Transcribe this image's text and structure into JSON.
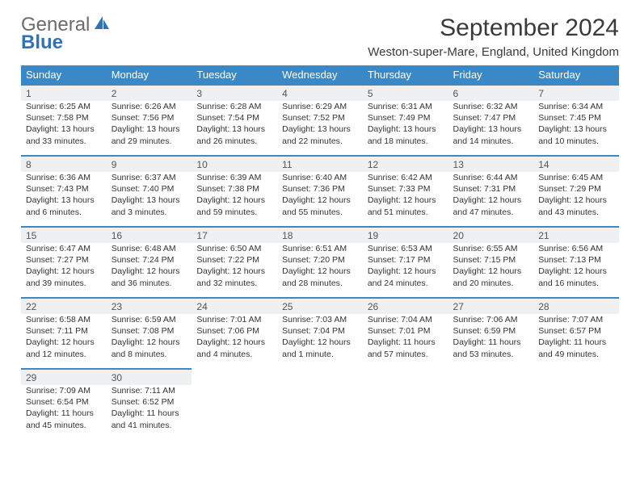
{
  "logo": {
    "top": "General",
    "bottom": "Blue",
    "top_color": "#6b6b6b",
    "bottom_color": "#2f72b6",
    "icon_color": "#2f72b6"
  },
  "title": "September 2024",
  "location": "Weston-super-Mare, England, United Kingdom",
  "header_bg": "#3b88c6",
  "header_fg": "#ffffff",
  "row_border_color": "#3b88c6",
  "daynum_bg": "#eef0f1",
  "weekdays": [
    "Sunday",
    "Monday",
    "Tuesday",
    "Wednesday",
    "Thursday",
    "Friday",
    "Saturday"
  ],
  "weeks": [
    [
      {
        "n": "1",
        "sr": "6:25 AM",
        "ss": "7:58 PM",
        "dl": "13 hours and 33 minutes."
      },
      {
        "n": "2",
        "sr": "6:26 AM",
        "ss": "7:56 PM",
        "dl": "13 hours and 29 minutes."
      },
      {
        "n": "3",
        "sr": "6:28 AM",
        "ss": "7:54 PM",
        "dl": "13 hours and 26 minutes."
      },
      {
        "n": "4",
        "sr": "6:29 AM",
        "ss": "7:52 PM",
        "dl": "13 hours and 22 minutes."
      },
      {
        "n": "5",
        "sr": "6:31 AM",
        "ss": "7:49 PM",
        "dl": "13 hours and 18 minutes."
      },
      {
        "n": "6",
        "sr": "6:32 AM",
        "ss": "7:47 PM",
        "dl": "13 hours and 14 minutes."
      },
      {
        "n": "7",
        "sr": "6:34 AM",
        "ss": "7:45 PM",
        "dl": "13 hours and 10 minutes."
      }
    ],
    [
      {
        "n": "8",
        "sr": "6:36 AM",
        "ss": "7:43 PM",
        "dl": "13 hours and 6 minutes."
      },
      {
        "n": "9",
        "sr": "6:37 AM",
        "ss": "7:40 PM",
        "dl": "13 hours and 3 minutes."
      },
      {
        "n": "10",
        "sr": "6:39 AM",
        "ss": "7:38 PM",
        "dl": "12 hours and 59 minutes."
      },
      {
        "n": "11",
        "sr": "6:40 AM",
        "ss": "7:36 PM",
        "dl": "12 hours and 55 minutes."
      },
      {
        "n": "12",
        "sr": "6:42 AM",
        "ss": "7:33 PM",
        "dl": "12 hours and 51 minutes."
      },
      {
        "n": "13",
        "sr": "6:44 AM",
        "ss": "7:31 PM",
        "dl": "12 hours and 47 minutes."
      },
      {
        "n": "14",
        "sr": "6:45 AM",
        "ss": "7:29 PM",
        "dl": "12 hours and 43 minutes."
      }
    ],
    [
      {
        "n": "15",
        "sr": "6:47 AM",
        "ss": "7:27 PM",
        "dl": "12 hours and 39 minutes."
      },
      {
        "n": "16",
        "sr": "6:48 AM",
        "ss": "7:24 PM",
        "dl": "12 hours and 36 minutes."
      },
      {
        "n": "17",
        "sr": "6:50 AM",
        "ss": "7:22 PM",
        "dl": "12 hours and 32 minutes."
      },
      {
        "n": "18",
        "sr": "6:51 AM",
        "ss": "7:20 PM",
        "dl": "12 hours and 28 minutes."
      },
      {
        "n": "19",
        "sr": "6:53 AM",
        "ss": "7:17 PM",
        "dl": "12 hours and 24 minutes."
      },
      {
        "n": "20",
        "sr": "6:55 AM",
        "ss": "7:15 PM",
        "dl": "12 hours and 20 minutes."
      },
      {
        "n": "21",
        "sr": "6:56 AM",
        "ss": "7:13 PM",
        "dl": "12 hours and 16 minutes."
      }
    ],
    [
      {
        "n": "22",
        "sr": "6:58 AM",
        "ss": "7:11 PM",
        "dl": "12 hours and 12 minutes."
      },
      {
        "n": "23",
        "sr": "6:59 AM",
        "ss": "7:08 PM",
        "dl": "12 hours and 8 minutes."
      },
      {
        "n": "24",
        "sr": "7:01 AM",
        "ss": "7:06 PM",
        "dl": "12 hours and 4 minutes."
      },
      {
        "n": "25",
        "sr": "7:03 AM",
        "ss": "7:04 PM",
        "dl": "12 hours and 1 minute."
      },
      {
        "n": "26",
        "sr": "7:04 AM",
        "ss": "7:01 PM",
        "dl": "11 hours and 57 minutes."
      },
      {
        "n": "27",
        "sr": "7:06 AM",
        "ss": "6:59 PM",
        "dl": "11 hours and 53 minutes."
      },
      {
        "n": "28",
        "sr": "7:07 AM",
        "ss": "6:57 PM",
        "dl": "11 hours and 49 minutes."
      }
    ],
    [
      {
        "n": "29",
        "sr": "7:09 AM",
        "ss": "6:54 PM",
        "dl": "11 hours and 45 minutes."
      },
      {
        "n": "30",
        "sr": "7:11 AM",
        "ss": "6:52 PM",
        "dl": "11 hours and 41 minutes."
      },
      null,
      null,
      null,
      null,
      null
    ]
  ],
  "labels": {
    "sunrise": "Sunrise: ",
    "sunset": "Sunset: ",
    "daylight": "Daylight: "
  }
}
